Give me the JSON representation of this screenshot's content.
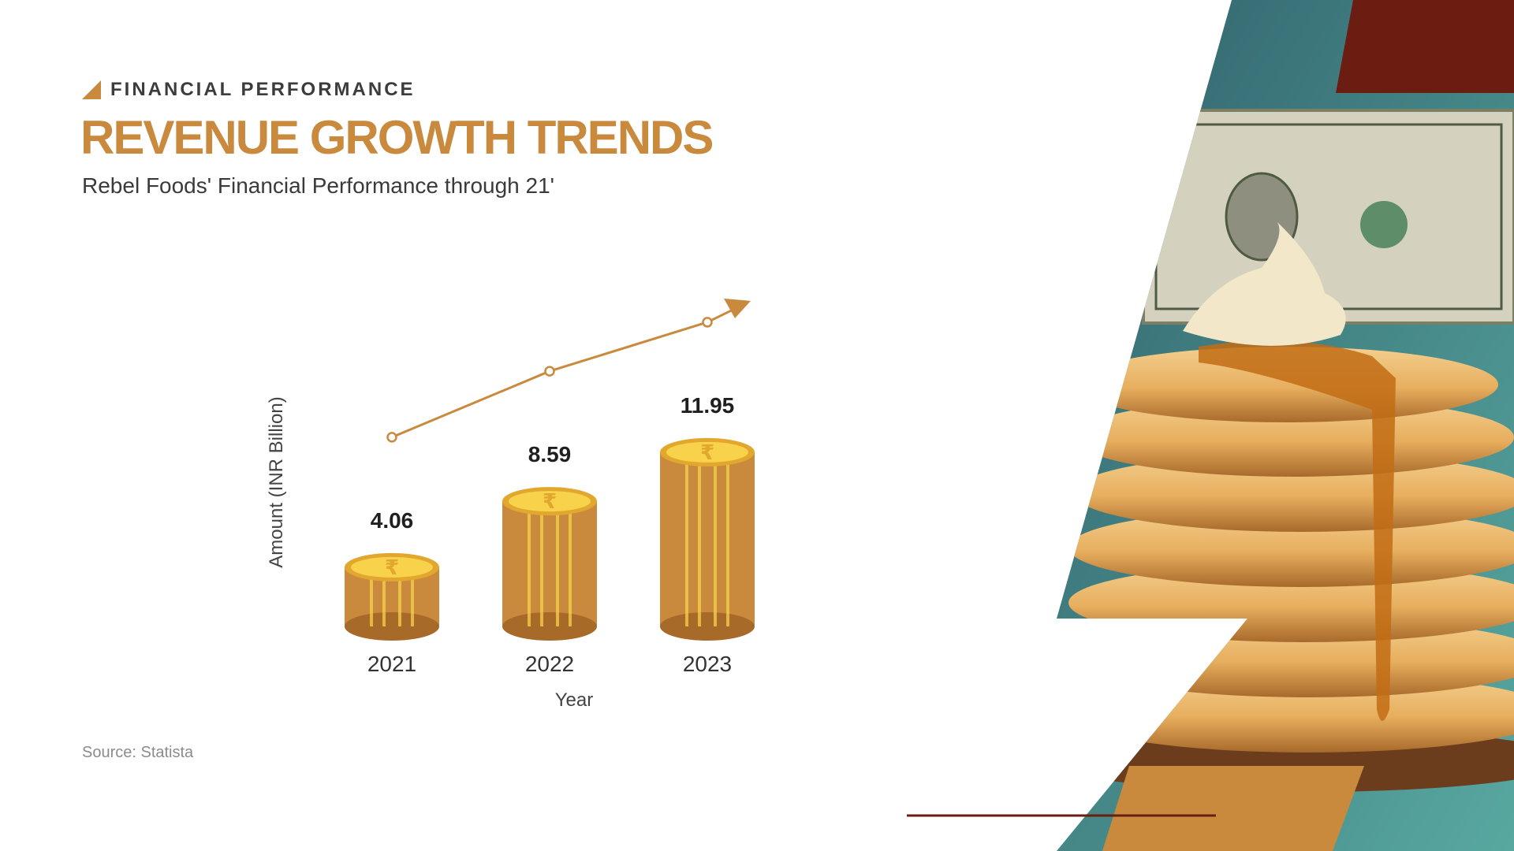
{
  "header": {
    "eyebrow": "FINANCIAL PERFORMANCE",
    "title": "REVENUE GROWTH TRENDS",
    "subtitle": "Rebel Foods' Financial Performance through 21'"
  },
  "footer": {
    "source": "Source: Statista"
  },
  "colors": {
    "accent": "#c98a3e",
    "coin": "#c98a3e",
    "coin_dark": "#a86a28",
    "coin_face": "#f7d24a",
    "maroon": "#6b1d12",
    "teal": "#3f8f8a"
  },
  "illustration": {
    "icons": [
      "rupee-coin-stack-icon",
      "trend-arrow-icon"
    ],
    "photo_subject": "pancake stack with cream, syrup and dollar bill"
  },
  "chart_data": {
    "type": "bar",
    "categories": [
      "2021",
      "2022",
      "2023"
    ],
    "values": [
      4.06,
      8.59,
      11.95
    ],
    "value_labels": [
      "4.06",
      "8.59",
      "11.95"
    ],
    "xlabel": "Year",
    "ylabel": "Amount (INR Billion)",
    "ylim": [
      0,
      14
    ],
    "grid": false,
    "legend": "none",
    "trend_arrow": true
  }
}
